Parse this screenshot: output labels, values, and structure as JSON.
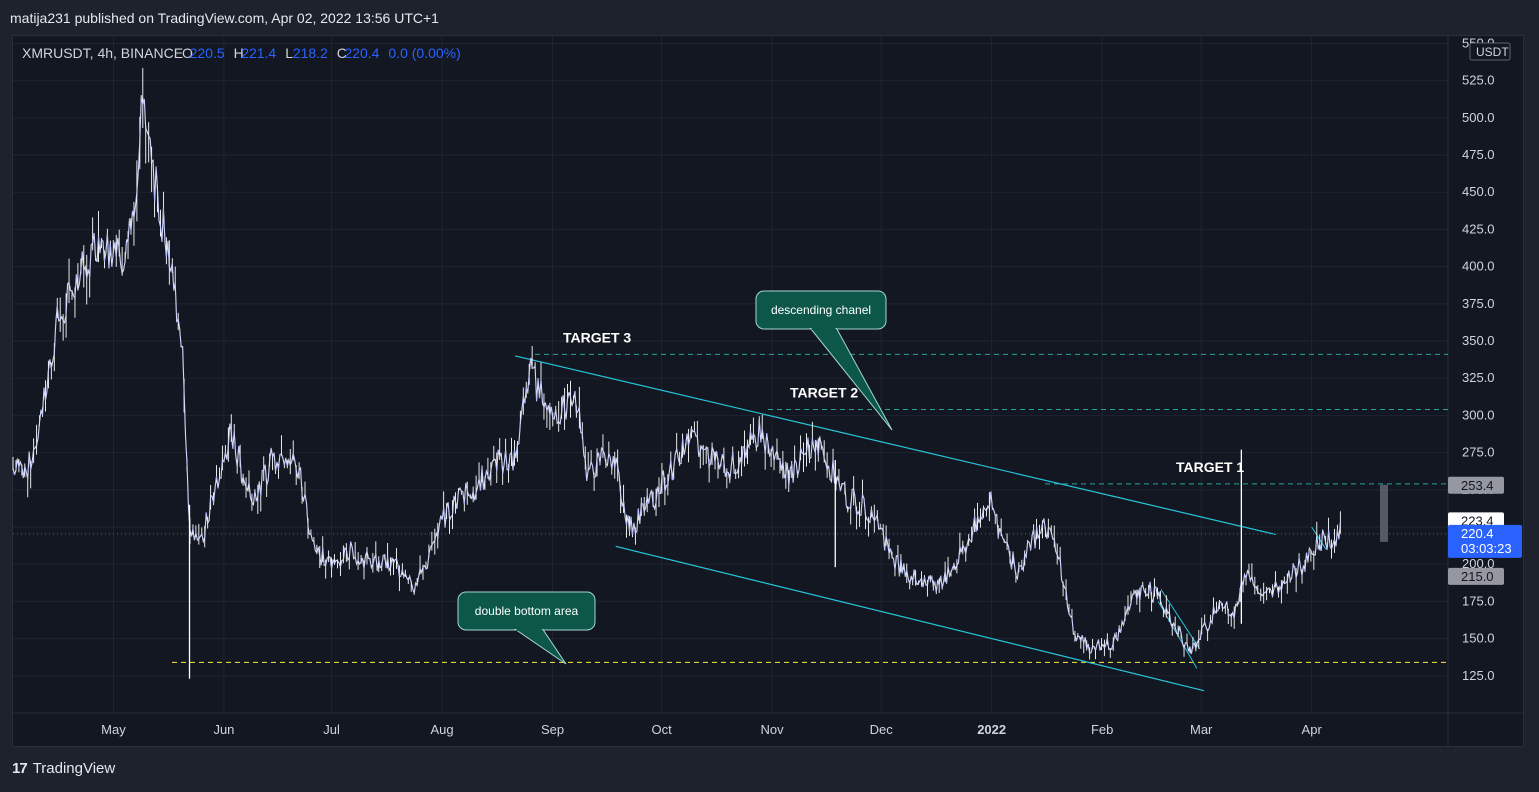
{
  "header": {
    "text": "matija231 published on TradingView.com, Apr 02, 2022 13:56 UTC+1"
  },
  "legend": {
    "symbol": "XMRUSDT, 4h, BINANCE",
    "o_label": "O",
    "o": "220.5",
    "h_label": "H",
    "h": "221.4",
    "l_label": "L",
    "l": "218.2",
    "c_label": "C",
    "c": "220.4",
    "change": "0.0 (0.00%)"
  },
  "currency": "USDT",
  "footer": {
    "brand": "TradingView"
  },
  "colors": {
    "background": "#1e222d",
    "pane": "#131722",
    "candle": "#ffffff",
    "accent": "#2962ff",
    "channel": "#26c6da",
    "target_line": "#26a69a",
    "support_line": "#ffeb3b",
    "callout": "#0c5748"
  },
  "chart_data": {
    "type": "line",
    "ylim": [
      100,
      555
    ],
    "y_ticks": [
      125,
      150,
      175,
      200,
      225,
      250,
      275,
      300,
      325,
      350,
      375,
      400,
      425,
      450,
      475,
      500,
      525,
      550
    ],
    "x_ticks": [
      {
        "label": "May",
        "bold": false,
        "t": 0.07
      },
      {
        "label": "Jun",
        "bold": false,
        "t": 0.147
      },
      {
        "label": "Jul",
        "bold": false,
        "t": 0.222
      },
      {
        "label": "Aug",
        "bold": false,
        "t": 0.299
      },
      {
        "label": "Sep",
        "bold": false,
        "t": 0.376
      },
      {
        "label": "Oct",
        "bold": false,
        "t": 0.452
      },
      {
        "label": "Nov",
        "bold": false,
        "t": 0.529
      },
      {
        "label": "Dec",
        "bold": false,
        "t": 0.605
      },
      {
        "label": "2022",
        "bold": true,
        "t": 0.682
      },
      {
        "label": "Feb",
        "bold": false,
        "t": 0.759
      },
      {
        "label": "Mar",
        "bold": false,
        "t": 0.828
      },
      {
        "label": "Apr",
        "bold": false,
        "t": 0.905
      }
    ],
    "price_path": [
      [
        0.0,
        265
      ],
      [
        0.01,
        262
      ],
      [
        0.02,
        300
      ],
      [
        0.03,
        360
      ],
      [
        0.05,
        400
      ],
      [
        0.06,
        420
      ],
      [
        0.075,
        405
      ],
      [
        0.085,
        430
      ],
      [
        0.09,
        510
      ],
      [
        0.095,
        480
      ],
      [
        0.1,
        450
      ],
      [
        0.11,
        400
      ],
      [
        0.118,
        345
      ],
      [
        0.123,
        230
      ],
      [
        0.13,
        210
      ],
      [
        0.138,
        240
      ],
      [
        0.145,
        260
      ],
      [
        0.152,
        290
      ],
      [
        0.16,
        260
      ],
      [
        0.17,
        245
      ],
      [
        0.18,
        270
      ],
      [
        0.19,
        275
      ],
      [
        0.2,
        260
      ],
      [
        0.21,
        210
      ],
      [
        0.22,
        200
      ],
      [
        0.235,
        210
      ],
      [
        0.25,
        200
      ],
      [
        0.265,
        200
      ],
      [
        0.275,
        195
      ],
      [
        0.28,
        185
      ],
      [
        0.29,
        205
      ],
      [
        0.3,
        230
      ],
      [
        0.31,
        245
      ],
      [
        0.32,
        250
      ],
      [
        0.33,
        260
      ],
      [
        0.34,
        270
      ],
      [
        0.35,
        270
      ],
      [
        0.355,
        300
      ],
      [
        0.36,
        330
      ],
      [
        0.37,
        310
      ],
      [
        0.38,
        300
      ],
      [
        0.39,
        310
      ],
      [
        0.395,
        305
      ],
      [
        0.4,
        260
      ],
      [
        0.41,
        270
      ],
      [
        0.42,
        265
      ],
      [
        0.43,
        225
      ],
      [
        0.44,
        235
      ],
      [
        0.45,
        250
      ],
      [
        0.46,
        265
      ],
      [
        0.47,
        285
      ],
      [
        0.48,
        275
      ],
      [
        0.49,
        270
      ],
      [
        0.5,
        265
      ],
      [
        0.51,
        275
      ],
      [
        0.52,
        290
      ],
      [
        0.53,
        270
      ],
      [
        0.54,
        260
      ],
      [
        0.55,
        270
      ],
      [
        0.56,
        285
      ],
      [
        0.57,
        265
      ],
      [
        0.58,
        245
      ],
      [
        0.59,
        240
      ],
      [
        0.6,
        235
      ],
      [
        0.61,
        210
      ],
      [
        0.62,
        195
      ],
      [
        0.63,
        190
      ],
      [
        0.64,
        185
      ],
      [
        0.65,
        190
      ],
      [
        0.66,
        205
      ],
      [
        0.67,
        225
      ],
      [
        0.68,
        245
      ],
      [
        0.69,
        215
      ],
      [
        0.7,
        195
      ],
      [
        0.71,
        215
      ],
      [
        0.72,
        225
      ],
      [
        0.73,
        200
      ],
      [
        0.74,
        150
      ],
      [
        0.75,
        145
      ],
      [
        0.76,
        145
      ],
      [
        0.77,
        150
      ],
      [
        0.78,
        175
      ],
      [
        0.79,
        185
      ],
      [
        0.8,
        175
      ],
      [
        0.81,
        160
      ],
      [
        0.82,
        140
      ],
      [
        0.83,
        155
      ],
      [
        0.84,
        175
      ],
      [
        0.85,
        165
      ],
      [
        0.86,
        200
      ],
      [
        0.87,
        175
      ],
      [
        0.88,
        185
      ],
      [
        0.89,
        195
      ],
      [
        0.9,
        200
      ],
      [
        0.91,
        215
      ],
      [
        0.92,
        218
      ],
      [
        0.925,
        220.4
      ]
    ],
    "spikes": [
      {
        "t": 0.123,
        "high": 240,
        "low": 123
      },
      {
        "t": 0.856,
        "high": 277,
        "low": 160
      },
      {
        "t": 0.573,
        "high": 270,
        "low": 198
      }
    ],
    "levels": [
      {
        "price": 341,
        "label": "TARGET 3",
        "style": "target"
      },
      {
        "price": 304,
        "label": "TARGET 2",
        "style": "target"
      },
      {
        "price": 254,
        "label": "TARGET 1",
        "style": "target"
      },
      {
        "price": 134,
        "label": "",
        "style": "support"
      }
    ],
    "channel": {
      "upper": [
        [
          0.35,
          340
        ],
        [
          0.88,
          220
        ]
      ],
      "lower": [
        [
          0.42,
          212
        ],
        [
          0.83,
          115
        ]
      ]
    },
    "price_badges": [
      {
        "label": "253.4",
        "price": 253.4,
        "kind": "grey"
      },
      {
        "label": "223.4",
        "price": 223.4,
        "kind": "white"
      },
      {
        "label": "220.4",
        "sub": "03:03:23",
        "price": 220.4,
        "kind": "blue"
      },
      {
        "label": "215.0",
        "price": 215.0,
        "kind": "grey"
      }
    ],
    "annotations": [
      {
        "text": "descending chanel",
        "anchor_t": 0.58,
        "anchor_price": 290
      },
      {
        "text": "double bottom area",
        "anchor_t": 0.365,
        "anchor_price": 134
      }
    ],
    "last_price": 220.4
  }
}
